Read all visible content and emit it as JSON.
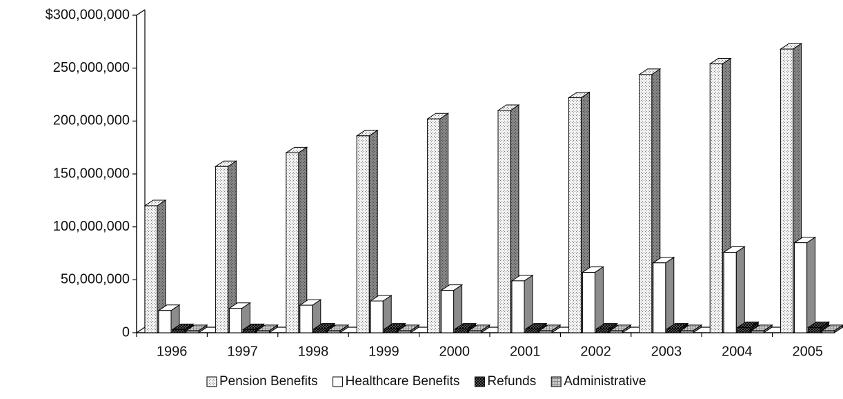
{
  "chart_data": {
    "type": "bar3d",
    "categories": [
      "1996",
      "1997",
      "1998",
      "1999",
      "2000",
      "2001",
      "2002",
      "2003",
      "2004",
      "2005"
    ],
    "series": [
      {
        "name": "Pension Benefits",
        "color": "#f2f2f2",
        "values": [
          120000000,
          157000000,
          170000000,
          186000000,
          202000000,
          210000000,
          222000000,
          244000000,
          254000000,
          268000000
        ]
      },
      {
        "name": "Healthcare Benefits",
        "color": "#ffffff",
        "values": [
          21000000,
          23000000,
          26000000,
          30000000,
          40000000,
          49000000,
          57000000,
          66000000,
          76000000,
          85000000
        ]
      },
      {
        "name": "Refunds",
        "color": "#555555",
        "values": [
          3000000,
          3000000,
          3500000,
          3500000,
          3500000,
          3500000,
          3500000,
          3500000,
          5000000,
          5000000
        ]
      },
      {
        "name": "Administrative",
        "color": "#cccccc",
        "values": [
          2000000,
          2000000,
          2000000,
          2000000,
          2000000,
          2000000,
          2000000,
          2000000,
          2000000,
          2000000
        ]
      }
    ],
    "ylim": [
      0,
      300000000
    ],
    "yticks": [
      {
        "value": 0,
        "label": "0"
      },
      {
        "value": 50000000,
        "label": "50,000,000"
      },
      {
        "value": 100000000,
        "label": "100,000,000"
      },
      {
        "value": 150000000,
        "label": "150,000,000"
      },
      {
        "value": 200000000,
        "label": "200,000,000"
      },
      {
        "value": 250000000,
        "label": "250,000,000"
      },
      {
        "value": 300000000,
        "label": "$300,000,000"
      }
    ],
    "grid": false,
    "legend": "bottom"
  }
}
